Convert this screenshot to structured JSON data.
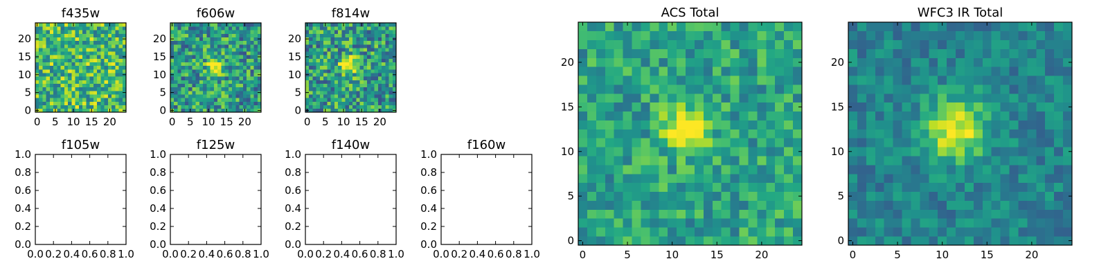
{
  "figure": {
    "background": "#ffffff",
    "colormap": "viridis"
  },
  "chart_data": [
    {
      "type": "heatmap",
      "id": "f435w",
      "title": "f435w",
      "grid_size": 25,
      "xlim": [
        -0.5,
        24.5
      ],
      "ylim": [
        -0.5,
        24.5
      ],
      "xticks": [
        0,
        5,
        10,
        15,
        20
      ],
      "yticks": [
        0,
        5,
        10,
        15,
        20
      ],
      "source": {
        "center": [
          12,
          12
        ],
        "sigma": 3.0,
        "peak": 0.0,
        "base": 0.68,
        "noise": 0.3,
        "seed": 435
      }
    },
    {
      "type": "heatmap",
      "id": "f606w",
      "title": "f606w",
      "grid_size": 25,
      "xlim": [
        -0.5,
        24.5
      ],
      "ylim": [
        -0.5,
        24.5
      ],
      "xticks": [
        0,
        5,
        10,
        15,
        20
      ],
      "yticks": [
        0,
        5,
        10,
        15,
        20
      ],
      "source": {
        "center": [
          12,
          12.5
        ],
        "sigma": 1.6,
        "peak": 0.6,
        "base": 0.55,
        "noise": 0.3,
        "seed": 606
      }
    },
    {
      "type": "heatmap",
      "id": "f814w",
      "title": "f814w",
      "grid_size": 25,
      "xlim": [
        -0.5,
        24.5
      ],
      "ylim": [
        -0.5,
        24.5
      ],
      "xticks": [
        0,
        5,
        10,
        15,
        20
      ],
      "yticks": [
        0,
        5,
        10,
        15,
        20
      ],
      "source": {
        "center": [
          11.5,
          12.5
        ],
        "sigma": 1.7,
        "peak": 0.6,
        "base": 0.55,
        "noise": 0.3,
        "seed": 814
      }
    },
    {
      "type": "empty",
      "id": "f105w",
      "title": "f105w",
      "xlim": [
        0,
        1
      ],
      "ylim": [
        0,
        1
      ],
      "xticks": [
        "0.0",
        "0.2",
        "0.4",
        "0.6",
        "0.8",
        "1.0"
      ],
      "yticks": [
        "0.0",
        "0.2",
        "0.4",
        "0.6",
        "0.8",
        "1.0"
      ]
    },
    {
      "type": "empty",
      "id": "f125w",
      "title": "f125w",
      "xlim": [
        0,
        1
      ],
      "ylim": [
        0,
        1
      ],
      "xticks": [
        "0.0",
        "0.2",
        "0.4",
        "0.6",
        "0.8",
        "1.0"
      ],
      "yticks": [
        "0.0",
        "0.2",
        "0.4",
        "0.6",
        "0.8",
        "1.0"
      ]
    },
    {
      "type": "empty",
      "id": "f140w",
      "title": "f140w",
      "xlim": [
        0,
        1
      ],
      "ylim": [
        0,
        1
      ],
      "xticks": [
        "0.0",
        "0.2",
        "0.4",
        "0.6",
        "0.8",
        "1.0"
      ],
      "yticks": [
        "0.0",
        "0.2",
        "0.4",
        "0.6",
        "0.8",
        "1.0"
      ]
    },
    {
      "type": "empty",
      "id": "f160w",
      "title": "f160w",
      "xlim": [
        0,
        1
      ],
      "ylim": [
        0,
        1
      ],
      "xticks": [
        "0.0",
        "0.2",
        "0.4",
        "0.6",
        "0.8",
        "1.0"
      ],
      "yticks": [
        "0.0",
        "0.2",
        "0.4",
        "0.6",
        "0.8",
        "1.0"
      ]
    },
    {
      "type": "heatmap",
      "id": "acs-total",
      "title": "ACS Total",
      "grid_size": 25,
      "xlim": [
        -0.5,
        24.5
      ],
      "ylim": [
        -0.5,
        24.5
      ],
      "xticks": [
        0,
        5,
        10,
        15,
        20
      ],
      "yticks": [
        0,
        5,
        10,
        15,
        20
      ],
      "source": {
        "center": [
          11.5,
          12.5
        ],
        "sigma": 1.6,
        "peak": 0.55,
        "base": 0.58,
        "noise": 0.2,
        "seed": 1001
      }
    },
    {
      "type": "heatmap",
      "id": "wfc3-ir-total",
      "title": "WFC3 IR Total",
      "grid_size": 25,
      "xlim": [
        -0.5,
        24.5
      ],
      "ylim": [
        -0.5,
        24.5
      ],
      "xticks": [
        0,
        5,
        10,
        15,
        20
      ],
      "yticks": [
        0,
        5,
        10,
        15,
        20
      ],
      "source": {
        "center": [
          11.5,
          12.5
        ],
        "sigma": 2.4,
        "peak": 0.55,
        "base": 0.45,
        "noise": 0.14,
        "seed": 2002
      }
    }
  ]
}
